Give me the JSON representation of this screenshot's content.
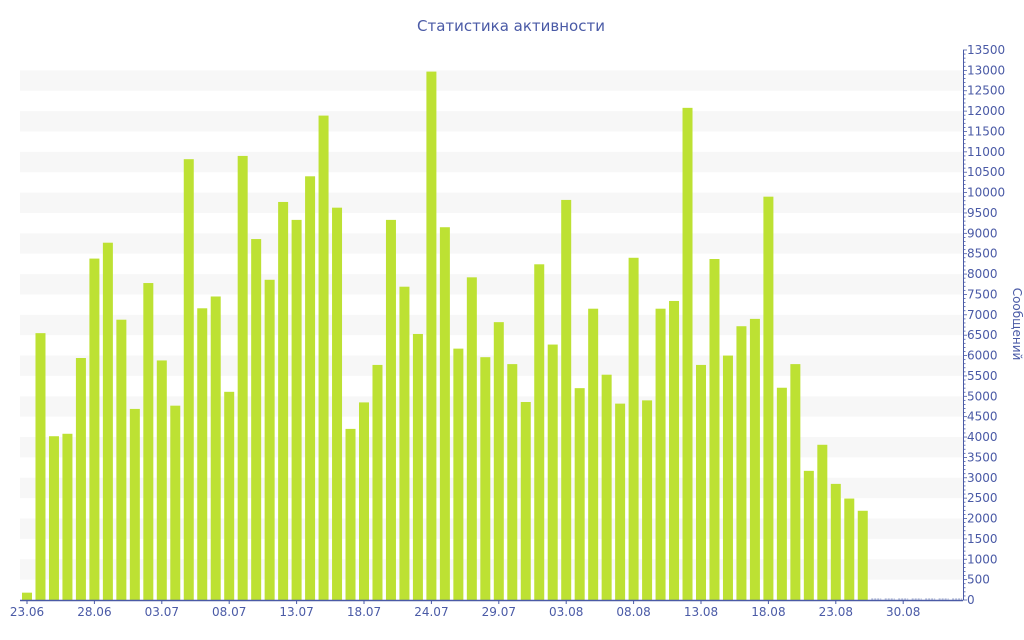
{
  "chart_data": {
    "type": "bar",
    "title": "Статистика активности",
    "xlabel": "",
    "ylabel": "Сообщений",
    "ylim": [
      0,
      13500
    ],
    "y_ticks": [
      0,
      500,
      1000,
      1500,
      2000,
      2500,
      3000,
      3500,
      4000,
      4500,
      5000,
      5500,
      6000,
      6500,
      7000,
      7500,
      8000,
      8500,
      9000,
      9500,
      10000,
      10500,
      11000,
      11500,
      12000,
      12500,
      13000,
      13500
    ],
    "x_tick_labels": [
      {
        "index": 0,
        "label": "23.06"
      },
      {
        "index": 5,
        "label": "28.06"
      },
      {
        "index": 10,
        "label": "03.07"
      },
      {
        "index": 15,
        "label": "08.07"
      },
      {
        "index": 20,
        "label": "13.07"
      },
      {
        "index": 25,
        "label": "18.07"
      },
      {
        "index": 30,
        "label": "24.07"
      },
      {
        "index": 35,
        "label": "29.07"
      },
      {
        "index": 40,
        "label": "03.08"
      },
      {
        "index": 45,
        "label": "08.08"
      },
      {
        "index": 50,
        "label": "13.08"
      },
      {
        "index": 55,
        "label": "18.08"
      },
      {
        "index": 60,
        "label": "23.08"
      },
      {
        "index": 65,
        "label": "30.08"
      }
    ],
    "values": [
      180,
      6550,
      4020,
      4080,
      5940,
      8380,
      8770,
      6880,
      4690,
      7780,
      5880,
      4770,
      10820,
      7160,
      7450,
      5110,
      10900,
      8860,
      7860,
      9770,
      9330,
      10400,
      11890,
      9630,
      4200,
      4850,
      5770,
      9330,
      7690,
      6530,
      12970,
      9150,
      6170,
      7920,
      5960,
      6820,
      5790,
      4860,
      8240,
      6270,
      9820,
      5200,
      7150,
      5530,
      4820,
      8400,
      4900,
      7150,
      7340,
      12080,
      5770,
      8370,
      6000,
      6720,
      6900,
      9900,
      5210,
      5790,
      3170,
      3810,
      2850,
      2490,
      2190,
      0,
      0,
      0,
      0,
      0,
      0,
      0
    ],
    "grid": "alternating horizontal bands",
    "legend": "none",
    "colors": {
      "bar": "#bde133",
      "axis": "#4a5aa6",
      "band": "#f7f7f7"
    }
  }
}
